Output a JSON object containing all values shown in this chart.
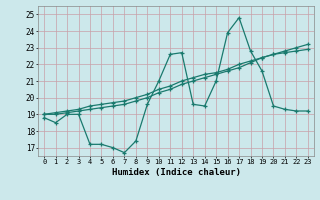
{
  "xlabel": "Humidex (Indice chaleur)",
  "bg_color": "#cce8eb",
  "grid_color": "#b0d0d4",
  "line_color": "#1a7a6e",
  "xlim": [
    -0.5,
    23.5
  ],
  "ylim": [
    16.5,
    25.5
  ],
  "yticks": [
    17,
    18,
    19,
    20,
    21,
    22,
    23,
    24,
    25
  ],
  "xticks": [
    0,
    1,
    2,
    3,
    4,
    5,
    6,
    7,
    8,
    9,
    10,
    11,
    12,
    13,
    14,
    15,
    16,
    17,
    18,
    19,
    20,
    21,
    22,
    23
  ],
  "line1_x": [
    0,
    1,
    2,
    3,
    4,
    5,
    6,
    7,
    8,
    9,
    10,
    11,
    12,
    13,
    14,
    15,
    16,
    17,
    18,
    19,
    20,
    21,
    22,
    23
  ],
  "line1_y": [
    18.8,
    18.5,
    19.0,
    19.0,
    17.2,
    17.2,
    17.0,
    16.7,
    17.4,
    19.6,
    21.0,
    22.6,
    22.7,
    19.6,
    19.5,
    21.0,
    23.9,
    24.8,
    22.8,
    21.6,
    19.5,
    19.3,
    19.2,
    19.2
  ],
  "line2_x": [
    0,
    1,
    2,
    3,
    4,
    5,
    6,
    7,
    8,
    9,
    10,
    11,
    12,
    13,
    14,
    15,
    16,
    17,
    18,
    19,
    20,
    21,
    22,
    23
  ],
  "line2_y": [
    19.0,
    19.1,
    19.2,
    19.3,
    19.5,
    19.6,
    19.7,
    19.8,
    20.0,
    20.2,
    20.5,
    20.7,
    21.0,
    21.2,
    21.4,
    21.5,
    21.7,
    22.0,
    22.2,
    22.4,
    22.6,
    22.7,
    22.8,
    22.9
  ],
  "line3_x": [
    0,
    1,
    2,
    3,
    4,
    5,
    6,
    7,
    8,
    9,
    10,
    11,
    12,
    13,
    14,
    15,
    16,
    17,
    18,
    19,
    20,
    21,
    22,
    23
  ],
  "line3_y": [
    19.0,
    19.0,
    19.1,
    19.2,
    19.3,
    19.4,
    19.5,
    19.6,
    19.8,
    20.0,
    20.3,
    20.5,
    20.8,
    21.0,
    21.2,
    21.4,
    21.6,
    21.8,
    22.1,
    22.4,
    22.6,
    22.8,
    23.0,
    23.2
  ]
}
